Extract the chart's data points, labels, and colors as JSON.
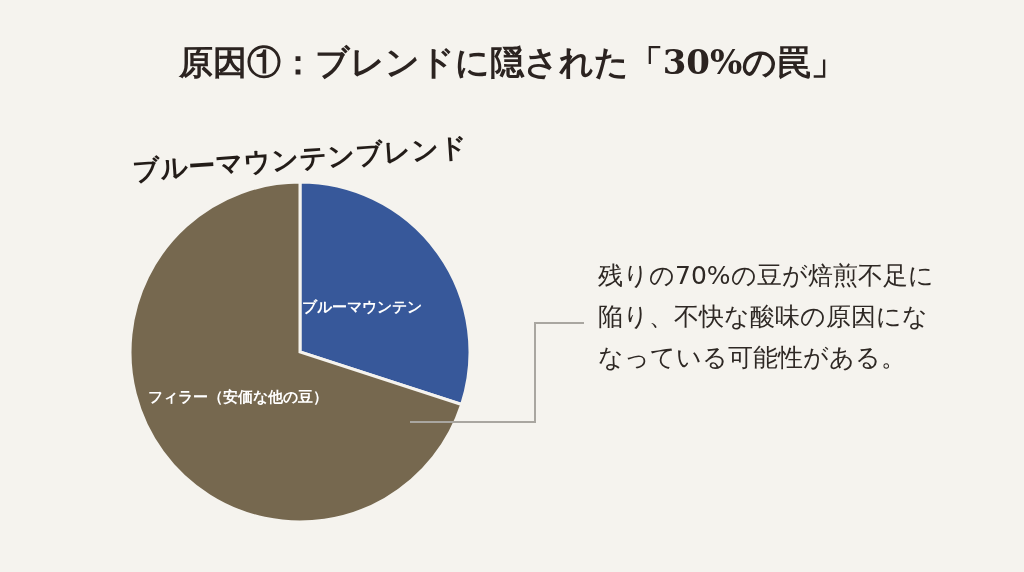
{
  "chart_data": {
    "type": "pie",
    "title": "原因①：ブレンドに隠された「30%の罠」",
    "subtitle": "ブルーマウンテンブレンド",
    "categories": [
      "ブルーマウンテン",
      "フィラー（安価な他の豆）"
    ],
    "values": [
      30,
      70
    ],
    "colors": [
      "#37589a",
      "#76684f"
    ],
    "annotations": [
      "残りの70%の豆が焙煎不足に陥り、不快な酸味の原因にななっている可能性がある。"
    ]
  }
}
